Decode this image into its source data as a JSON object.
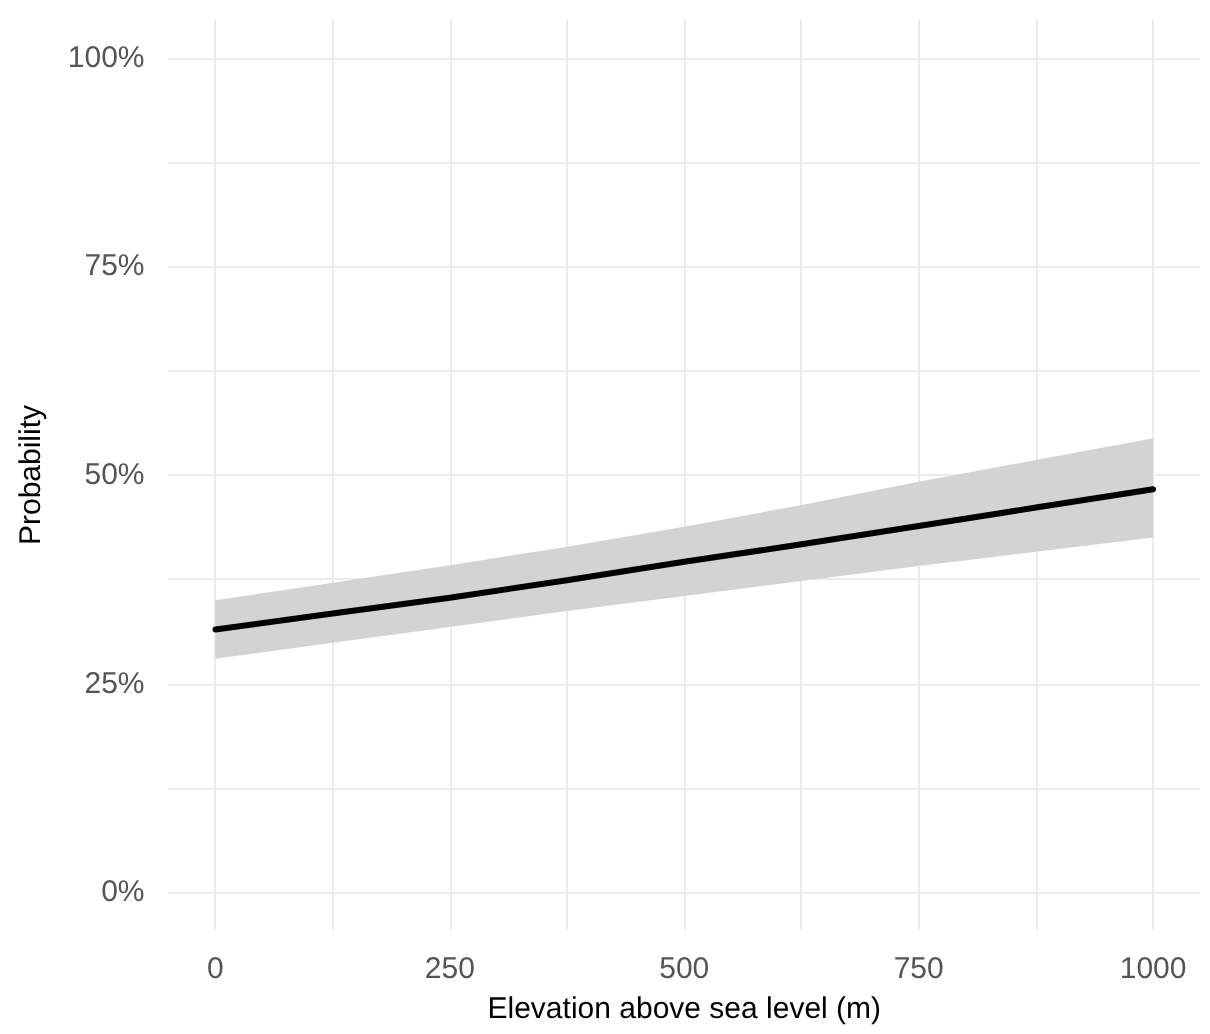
{
  "chart_data": {
    "type": "line",
    "xlabel": "Elevation above sea level (m)",
    "ylabel": "Probability",
    "x": [
      0,
      125,
      250,
      375,
      500,
      625,
      750,
      875,
      1000
    ],
    "series": [
      {
        "color": "#000000",
        "values": [
          31.5,
          33.4,
          35.3,
          37.4,
          39.6,
          41.7,
          43.9,
          46.1,
          48.3
        ],
        "lower": [
          28.0,
          29.9,
          31.8,
          33.7,
          35.5,
          37.3,
          39.1,
          40.8,
          42.5
        ],
        "upper": [
          35.0,
          37.1,
          39.2,
          41.4,
          43.8,
          46.4,
          49.2,
          51.8,
          54.4
        ]
      }
    ],
    "xlim": [
      -50,
      1050
    ],
    "ylim": [
      -4.5,
      104.5
    ],
    "xticks": [
      0,
      {
        "value": 125,
        "label": null
      },
      250,
      {
        "value": 375,
        "label": null
      },
      500,
      {
        "value": 625,
        "label": null
      },
      750,
      {
        "value": 875,
        "label": null
      },
      1000
    ],
    "yticks": [
      {
        "value": 0,
        "label": "0%"
      },
      {
        "value": 12.5,
        "label": null
      },
      {
        "value": 25,
        "label": "25%"
      },
      {
        "value": 37.5,
        "label": null
      },
      {
        "value": 50,
        "label": "50%"
      },
      {
        "value": 62.5,
        "label": null
      },
      {
        "value": 75,
        "label": "75%"
      },
      {
        "value": 87.5,
        "label": null
      },
      {
        "value": 100,
        "label": "100%"
      }
    ],
    "grid": true,
    "marker": "none",
    "line_style": "solid"
  }
}
